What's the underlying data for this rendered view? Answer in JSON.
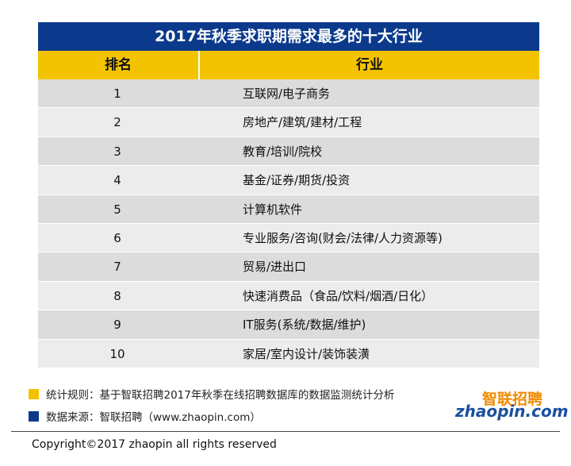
{
  "title": "2017年秋季求职期需求最多的十大行业",
  "table": {
    "header": [
      "排名",
      "行业"
    ],
    "rows": [
      [
        1,
        "互联网/电子商务"
      ],
      [
        2,
        "房地产/建筑/建材/工程"
      ],
      [
        3,
        "教育/培训/院校"
      ],
      [
        4,
        "基金/证券/期货/投资"
      ],
      [
        5,
        "计算机软件"
      ],
      [
        6,
        "专业服务/咨询(财会/法律/人力资源等)"
      ],
      [
        7,
        "贸易/进出口"
      ],
      [
        8,
        "快速消费品（食品/饮料/烟酒/日化）"
      ],
      [
        9,
        "IT服务(系统/数据/维护)"
      ],
      [
        10,
        "家居/室内设计/装饰装潢"
      ]
    ]
  },
  "notes": [
    "统计规则：基于智联招聘2017年秋季在线招聘数据库的数据监测统计分析",
    "数据来源：智联招聘（www.zhaopin.com）"
  ],
  "logo": {
    "name": "智联招聘",
    "domain": "zhaopin.com"
  },
  "copyright": "Copyright©2017 zhaopin all rights reserved"
}
